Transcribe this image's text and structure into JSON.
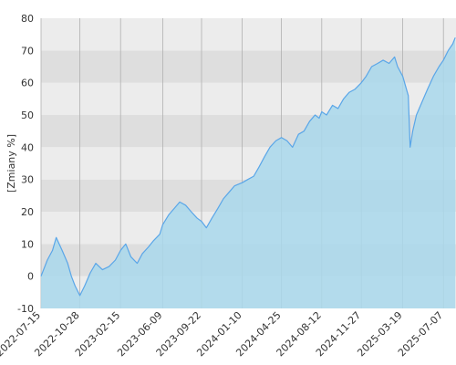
{
  "chart_data": {
    "type": "area",
    "title": "",
    "xlabel": "",
    "ylabel": "[Zmiany %]",
    "ylim": [
      -10,
      80
    ],
    "yticks": [
      -10,
      0,
      10,
      20,
      30,
      40,
      50,
      60,
      70,
      80
    ],
    "xlim": [
      "2022-07-15",
      "2025-08-10"
    ],
    "xtick_labels": [
      "2022-07-15",
      "2022-10-28",
      "2023-02-15",
      "2023-06-09",
      "2023-09-22",
      "2024-01-10",
      "2024-04-25",
      "2024-08-12",
      "2024-11-27",
      "2025-03-19",
      "2025-07-07"
    ],
    "grid": true,
    "legend": "none",
    "colors": {
      "line": "#5aa6e8",
      "fill": "#a9d8ec",
      "band_light": "#ececec",
      "band_dark": "#dedede",
      "gridline": "#b0b0b0"
    },
    "series": [
      {
        "x": [
          "2022-07-15",
          "2022-08-01",
          "2022-08-15",
          "2022-08-25",
          "2022-09-10",
          "2022-09-25",
          "2022-10-05",
          "2022-10-15",
          "2022-10-28",
          "2022-11-10",
          "2022-11-25",
          "2022-12-10",
          "2022-12-28",
          "2023-01-15",
          "2023-02-01",
          "2023-02-15",
          "2023-03-01",
          "2023-03-15",
          "2023-04-01",
          "2023-04-15",
          "2023-05-01",
          "2023-05-15",
          "2023-06-01",
          "2023-06-09",
          "2023-06-25",
          "2023-07-10",
          "2023-07-25",
          "2023-08-10",
          "2023-08-25",
          "2023-09-10",
          "2023-09-22",
          "2023-10-05",
          "2023-10-20",
          "2023-11-05",
          "2023-11-20",
          "2023-12-05",
          "2023-12-20",
          "2024-01-10",
          "2024-01-25",
          "2024-02-10",
          "2024-02-25",
          "2024-03-10",
          "2024-03-25",
          "2024-04-10",
          "2024-04-25",
          "2024-05-10",
          "2024-05-25",
          "2024-06-10",
          "2024-06-25",
          "2024-07-10",
          "2024-07-25",
          "2024-08-05",
          "2024-08-12",
          "2024-08-25",
          "2024-09-10",
          "2024-09-25",
          "2024-10-10",
          "2024-10-25",
          "2024-11-10",
          "2024-11-27",
          "2024-12-10",
          "2024-12-25",
          "2025-01-10",
          "2025-01-25",
          "2025-02-10",
          "2025-02-25",
          "2025-03-05",
          "2025-03-19",
          "2025-04-03",
          "2025-04-08",
          "2025-04-15",
          "2025-04-25",
          "2025-05-10",
          "2025-05-25",
          "2025-06-10",
          "2025-06-25",
          "2025-07-07",
          "2025-07-20",
          "2025-08-01",
          "2025-08-08"
        ],
        "values": [
          0,
          5,
          8,
          12,
          8,
          4,
          0,
          -3,
          -6,
          -3,
          1,
          4,
          2,
          3,
          5,
          8,
          10,
          6,
          4,
          7,
          9,
          11,
          13,
          16,
          19,
          21,
          23,
          22,
          20,
          18,
          17,
          15,
          18,
          21,
          24,
          26,
          28,
          29,
          30,
          31,
          34,
          37,
          40,
          42,
          43,
          42,
          40,
          44,
          45,
          48,
          50,
          49,
          51,
          50,
          53,
          52,
          55,
          57,
          58,
          60,
          62,
          65,
          66,
          67,
          66,
          68,
          65,
          62,
          56,
          40,
          45,
          50,
          54,
          58,
          62,
          65,
          67,
          70,
          72,
          74
        ]
      }
    ]
  }
}
